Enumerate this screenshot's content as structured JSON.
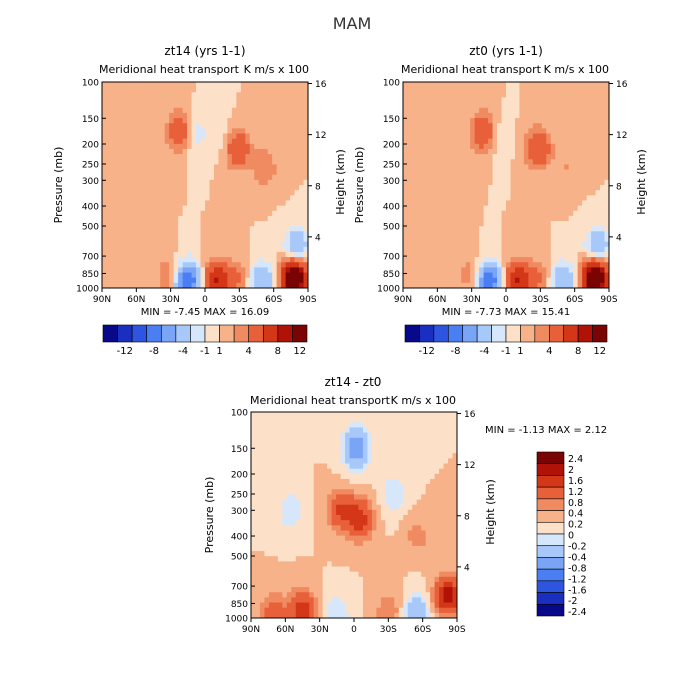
{
  "page_title": "MAM",
  "colors": {
    "background": "#ffffff",
    "main_cbar": [
      "#08088a",
      "#1a2fbf",
      "#2d55e0",
      "#4a7ef2",
      "#7aa5f7",
      "#a7c8f8",
      "#d6e7fb",
      "#fde0c8",
      "#f7b28a",
      "#f08a60",
      "#e8603a",
      "#d43618",
      "#b01208",
      "#7a0404"
    ],
    "diff_cbar": [
      "#08088a",
      "#1a2fbf",
      "#2d55e0",
      "#4a7ef2",
      "#7aa5f7",
      "#a7c8f8",
      "#d6e7fb",
      "#fde0c8",
      "#f7b28a",
      "#f08a60",
      "#e8603a",
      "#d43618",
      "#b01208",
      "#7a0404"
    ]
  },
  "chart_data": [
    {
      "type": "heatmap",
      "title": "zt14 (yrs 1-1)",
      "subtitle": "Meridional heat transport",
      "units_label": "K m/s x 100",
      "xlabel": "",
      "ylabel": "Pressure (mb)",
      "ylabel_right": "Height (km)",
      "x_ticks": [
        "90N",
        "60N",
        "30N",
        "0",
        "30S",
        "60S",
        "90S"
      ],
      "y_ticks": [
        "100",
        "150",
        "200",
        "250",
        "300",
        "400",
        "500",
        "700",
        "850",
        "1000"
      ],
      "y_ticks_right": [
        "16",
        "12",
        "8",
        "4"
      ],
      "ylim": [
        1000,
        100
      ],
      "stats_text": "MIN = -7.45 MAX = 16.09",
      "min": -7.45,
      "max": 16.09,
      "colorbar_labels": [
        "-12",
        "-8",
        "-4",
        "-1",
        "1",
        "4",
        "8",
        "12"
      ],
      "colorbar_levels": [
        -12,
        -10,
        -8,
        -6,
        -4,
        -2,
        -1,
        0,
        1,
        2,
        4,
        6,
        8,
        10,
        12
      ],
      "features": [
        {
          "lat": 22,
          "p": 175,
          "value": 4
        },
        {
          "lat": 10,
          "p": 180,
          "value": -2
        },
        {
          "lat": -18,
          "p": 190,
          "value": -1
        },
        {
          "lat": -28,
          "p": 210,
          "value": 4
        },
        {
          "lat": -52,
          "p": 260,
          "value": 2
        },
        {
          "lat": 32,
          "p": 880,
          "value": 2
        },
        {
          "lat": 15,
          "p": 940,
          "value": -8
        },
        {
          "lat": -10,
          "p": 930,
          "value": 6
        },
        {
          "lat": -28,
          "p": 910,
          "value": 2
        },
        {
          "lat": -50,
          "p": 940,
          "value": -4
        },
        {
          "lat": -78,
          "p": 900,
          "value": 12
        },
        {
          "lat": -80,
          "p": 640,
          "value": -4
        }
      ]
    },
    {
      "type": "heatmap",
      "title": "zt0 (yrs 1-1)",
      "subtitle": "Meridional heat transport",
      "units_label": "K m/s x 100",
      "xlabel": "",
      "ylabel": "Pressure (mb)",
      "ylabel_right": "Height (km)",
      "x_ticks": [
        "90N",
        "60N",
        "30N",
        "0",
        "30S",
        "60S",
        "90S"
      ],
      "y_ticks": [
        "100",
        "150",
        "200",
        "250",
        "300",
        "400",
        "500",
        "700",
        "850",
        "1000"
      ],
      "y_ticks_right": [
        "16",
        "12",
        "8",
        "4"
      ],
      "ylim": [
        1000,
        100
      ],
      "stats_text": "MIN = -7.73 MAX = 15.41",
      "min": -7.73,
      "max": 15.41,
      "colorbar_labels": [
        "-12",
        "-8",
        "-4",
        "-1",
        "1",
        "4",
        "8",
        "12"
      ],
      "colorbar_levels": [
        -12,
        -10,
        -8,
        -6,
        -4,
        -2,
        -1,
        0,
        1,
        2,
        4,
        6,
        8,
        10,
        12
      ],
      "features": [
        {
          "lat": 20,
          "p": 175,
          "value": 4
        },
        {
          "lat": 8,
          "p": 185,
          "value": -1
        },
        {
          "lat": -28,
          "p": 210,
          "value": 4
        },
        {
          "lat": -52,
          "p": 260,
          "value": 1
        },
        {
          "lat": 30,
          "p": 880,
          "value": 2
        },
        {
          "lat": 15,
          "p": 940,
          "value": -8
        },
        {
          "lat": -10,
          "p": 930,
          "value": 6
        },
        {
          "lat": -28,
          "p": 910,
          "value": 2
        },
        {
          "lat": -50,
          "p": 940,
          "value": -4
        },
        {
          "lat": -78,
          "p": 900,
          "value": 12
        },
        {
          "lat": -80,
          "p": 640,
          "value": -4
        }
      ]
    },
    {
      "type": "heatmap",
      "title": "zt14 - zt0",
      "subtitle": "Meridional heat transport",
      "units_label": "K m/s x 100",
      "xlabel": "",
      "ylabel": "Pressure (mb)",
      "ylabel_right": "Height (km)",
      "x_ticks": [
        "90N",
        "60N",
        "30N",
        "0",
        "30S",
        "60S",
        "90S"
      ],
      "y_ticks": [
        "100",
        "150",
        "200",
        "250",
        "300",
        "400",
        "500",
        "700",
        "850",
        "1000"
      ],
      "y_ticks_right": [
        "16",
        "12",
        "8",
        "4"
      ],
      "ylim": [
        1000,
        100
      ],
      "stats_text": "MIN = -1.13 MAX = 2.12",
      "min": -1.13,
      "max": 2.12,
      "colorbar_labels": [
        "2.4",
        "2",
        "1.6",
        "1.2",
        "0.8",
        "0.4",
        "0.2",
        "0",
        "-0.2",
        "-0.4",
        "-0.8",
        "-1.2",
        "-1.6",
        "-2",
        "-2.4"
      ],
      "colorbar_levels": [
        -2.4,
        -2,
        -1.6,
        -1.2,
        -0.8,
        -0.4,
        -0.2,
        0,
        0.2,
        0.4,
        0.8,
        1.2,
        1.6,
        2,
        2.4
      ],
      "features": [
        {
          "lat": -2,
          "p": 150,
          "value": -1.2
        },
        {
          "lat": 12,
          "p": 300,
          "value": 0.8
        },
        {
          "lat": -5,
          "p": 330,
          "value": 1.0
        },
        {
          "lat": 55,
          "p": 300,
          "value": -0.4
        },
        {
          "lat": -35,
          "p": 250,
          "value": -0.4
        },
        {
          "lat": -55,
          "p": 400,
          "value": 0.3
        },
        {
          "lat": -82,
          "p": 820,
          "value": 2.0
        },
        {
          "lat": -82,
          "p": 950,
          "value": -0.8
        },
        {
          "lat": 70,
          "p": 950,
          "value": 0.6
        },
        {
          "lat": 45,
          "p": 920,
          "value": 1.0
        },
        {
          "lat": 15,
          "p": 970,
          "value": -0.4
        },
        {
          "lat": -55,
          "p": 970,
          "value": -0.8
        },
        {
          "lat": -30,
          "p": 930,
          "value": 0.4
        }
      ]
    }
  ]
}
